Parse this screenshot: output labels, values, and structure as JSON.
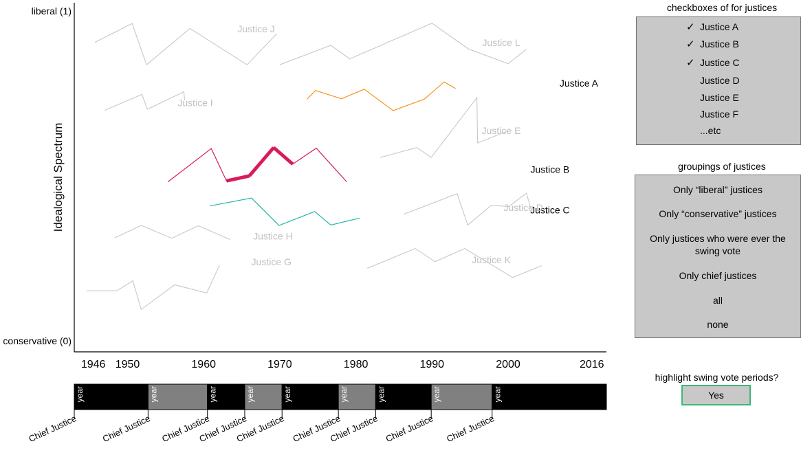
{
  "chart_data": {
    "type": "line",
    "ylabel": "Idealogical Spectrum",
    "y_tick_labels": [
      {
        "label": "liberal (1)",
        "value": 1
      },
      {
        "label": "conservative (0)",
        "value": 0
      }
    ],
    "ylim": [
      0,
      1
    ],
    "xlim": [
      1943,
      2017
    ],
    "x_tick_labels": [
      "1946",
      "1950",
      "1960",
      "1970",
      "1980",
      "1990",
      "2000",
      "2016"
    ],
    "x_tick_positions": [
      1945.5,
      1950,
      1960,
      1970,
      1980,
      1990,
      2000,
      2011
    ],
    "grid": false,
    "series": [
      {
        "name": "Justice J",
        "highlighted": false,
        "label_pos": [
          1966.9,
          0.946
        ],
        "points": [
          [
            1945.7,
            0.905
          ],
          [
            1950.6,
            0.962
          ],
          [
            1952.5,
            0.837
          ],
          [
            1958.2,
            0.947
          ],
          [
            1965.7,
            0.837
          ],
          [
            1969.6,
            0.931
          ]
        ]
      },
      {
        "name": "Justice L",
        "highlighted": false,
        "label_pos": [
          1999.1,
          0.904
        ],
        "points": [
          [
            1970.0,
            0.837
          ],
          [
            1976.7,
            0.896
          ],
          [
            1979.2,
            0.855
          ],
          [
            1990.0,
            0.963
          ],
          [
            1994.8,
            0.885
          ],
          [
            2000.0,
            0.84
          ],
          [
            2002.4,
            0.884
          ]
        ]
      },
      {
        "name": "Justice I",
        "highlighted": false,
        "label_pos": [
          1958.9,
          0.722
        ],
        "points": [
          [
            1947.0,
            0.699
          ],
          [
            1951.9,
            0.747
          ],
          [
            1952.6,
            0.702
          ],
          [
            1957.4,
            0.755
          ],
          [
            1957.5,
            0.73
          ]
        ]
      },
      {
        "name": "Justice A",
        "highlighted": true,
        "color": "#f7941d",
        "width": 1.2,
        "label_pos": [
          2009.3,
          0.781
        ],
        "points": [
          [
            1973.6,
            0.733
          ],
          [
            1974.7,
            0.759
          ],
          [
            1978.1,
            0.734
          ],
          [
            1981.1,
            0.763
          ],
          [
            1984.9,
            0.698
          ],
          [
            1989.0,
            0.733
          ],
          [
            1991.6,
            0.785
          ],
          [
            1993.1,
            0.765
          ]
        ]
      },
      {
        "name": "Justice E",
        "highlighted": false,
        "label_pos": [
          1999.1,
          0.637
        ],
        "points": [
          [
            1983.2,
            0.556
          ],
          [
            1988.0,
            0.586
          ],
          [
            1989.9,
            0.556
          ],
          [
            1995.9,
            0.737
          ],
          [
            1996.0,
            0.6
          ],
          [
            1999.8,
            0.635
          ]
        ]
      },
      {
        "name": "Justice B",
        "highlighted": true,
        "color": "#d91b5c",
        "width": 1.2,
        "label_pos": [
          2005.5,
          0.52
        ],
        "points": [
          [
            1955.3,
            0.482
          ],
          [
            1961.0,
            0.583
          ],
          [
            1963.0,
            0.485
          ],
          [
            1966.0,
            0.5
          ],
          [
            1969.2,
            0.586
          ],
          [
            1971.7,
            0.536
          ],
          [
            1974.8,
            0.584
          ],
          [
            1978.8,
            0.482
          ]
        ],
        "bold_segments": [
          [
            2,
            3
          ],
          [
            3,
            4
          ],
          [
            4,
            5
          ]
        ]
      },
      {
        "name": "Justice C",
        "highlighted": true,
        "color": "#26b5a6",
        "width": 1.2,
        "label_pos": [
          2005.5,
          0.397
        ],
        "points": [
          [
            1960.8,
            0.409
          ],
          [
            1966.3,
            0.433
          ],
          [
            1969.9,
            0.35
          ],
          [
            1974.6,
            0.392
          ],
          [
            1976.7,
            0.351
          ],
          [
            1980.5,
            0.372
          ]
        ]
      },
      {
        "name": "Justice D",
        "highlighted": false,
        "label_pos": [
          2002.0,
          0.404
        ],
        "points": [
          [
            1986.3,
            0.384
          ],
          [
            1993.3,
            0.446
          ],
          [
            1994.7,
            0.351
          ],
          [
            1997.8,
            0.411
          ],
          [
            2000.1,
            0.407
          ],
          [
            2002.4,
            0.448
          ],
          [
            2003.1,
            0.393
          ]
        ]
      },
      {
        "name": "Justice H",
        "highlighted": false,
        "label_pos": [
          1969.1,
          0.318
        ],
        "points": [
          [
            1948.3,
            0.312
          ],
          [
            1951.8,
            0.35
          ],
          [
            1955.8,
            0.311
          ],
          [
            1959.3,
            0.349
          ],
          [
            1963.5,
            0.307
          ]
        ]
      },
      {
        "name": "Justice G",
        "highlighted": false,
        "label_pos": [
          1968.9,
          0.24
        ],
        "points": [
          [
            1944.6,
            0.152
          ],
          [
            1948.6,
            0.152
          ],
          [
            1950.7,
            0.182
          ],
          [
            1951.8,
            0.095
          ],
          [
            1956.2,
            0.17
          ],
          [
            1960.4,
            0.145
          ],
          [
            1962.1,
            0.23
          ]
        ]
      },
      {
        "name": "Justice K",
        "highlighted": false,
        "label_pos": [
          1997.8,
          0.246
        ],
        "points": [
          [
            1981.5,
            0.22
          ],
          [
            1987.8,
            0.28
          ],
          [
            1990.4,
            0.24
          ],
          [
            1994.3,
            0.28
          ],
          [
            2000.6,
            0.192
          ],
          [
            2004.4,
            0.228
          ]
        ]
      }
    ]
  },
  "timeline": {
    "segments": [
      {
        "label": "year",
        "color": "#000000",
        "years": [
          1943,
          1952.7
        ]
      },
      {
        "label": "year",
        "color": "#808080",
        "years": [
          1952.7,
          1960.5
        ]
      },
      {
        "label": "year",
        "color": "#000000",
        "years": [
          1960.5,
          1965.4
        ]
      },
      {
        "label": "year",
        "color": "#808080",
        "years": [
          1965.4,
          1970.3
        ]
      },
      {
        "label": "year",
        "color": "#000000",
        "years": [
          1970.3,
          1977.7
        ]
      },
      {
        "label": "year",
        "color": "#808080",
        "years": [
          1977.7,
          1982.6
        ]
      },
      {
        "label": "year",
        "color": "#000000",
        "years": [
          1982.6,
          1989.9
        ]
      },
      {
        "label": "year",
        "color": "#808080",
        "years": [
          1989.9,
          1997.9
        ]
      },
      {
        "label": "year",
        "color": "#000000",
        "years": [
          1997.9,
          2001.8
        ]
      }
    ],
    "chief_justice_label": "Chief Justice"
  },
  "justice_checkboxes": {
    "title": "checkboxes of for justices",
    "items": [
      {
        "label": "Justice A",
        "checked": true
      },
      {
        "label": "Justice B",
        "checked": true
      },
      {
        "label": "Justice C",
        "checked": true
      },
      {
        "label": "Justice D",
        "checked": false
      },
      {
        "label": "Justice E",
        "checked": false
      },
      {
        "label": "Justice F",
        "checked": false
      },
      {
        "label": "...etc",
        "checked": false
      }
    ],
    "check_glyph": "✓"
  },
  "groupings": {
    "title": "groupings of justices",
    "items": [
      "Only “liberal” justices",
      "Only “conservative” justices",
      "Only justices who were ever the swing vote",
      "Only chief justices",
      "all",
      "none"
    ]
  },
  "swing_vote": {
    "title": "highlight swing vote periods?",
    "button_label": "Yes"
  },
  "colors": {
    "inactive_line": "#c8c8c8",
    "inactive_label": "#c0c0c0",
    "panel_bg": "#c8c8c8",
    "button_border": "#3cb878"
  }
}
